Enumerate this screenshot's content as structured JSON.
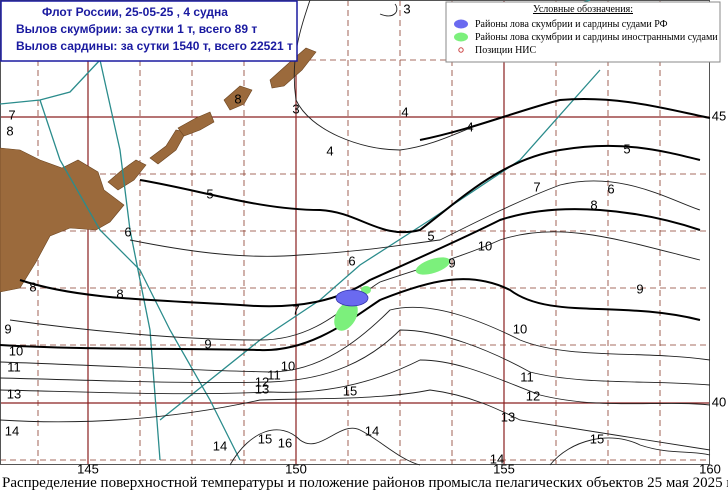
{
  "info_box": {
    "line1": "Флот России,  25-05-25 ,  4 судна",
    "line2": "Вылов скумбрии: за сутки  1 т, всего 89 т",
    "line3": "Вылов сардины:  за сутки 1540 т,  всего 22521 т"
  },
  "legend": {
    "title": "Условные обозначения:",
    "items": [
      "Районы лова скумбрии и сардины судами  РФ",
      "Районы лова скумбрии и сардины иностранными судами",
      "Позиции НИС"
    ]
  },
  "longitude_labels": [
    145,
    150,
    155,
    160
  ],
  "latitude_labels": [
    45,
    40
  ],
  "contour_labels": [
    3,
    3,
    4,
    4,
    4,
    5,
    5,
    5,
    6,
    6,
    6,
    7,
    7,
    7,
    8,
    8,
    8,
    8,
    8,
    9,
    9,
    9,
    9,
    10,
    10,
    10,
    10,
    11,
    11,
    11,
    12,
    12,
    13,
    13,
    13,
    14,
    14,
    14,
    14,
    15,
    15,
    15,
    16
  ],
  "caption": "Распределение поверхностной температуры и положение районов промысла пелагических объектов 25 мая  2025 г"
}
